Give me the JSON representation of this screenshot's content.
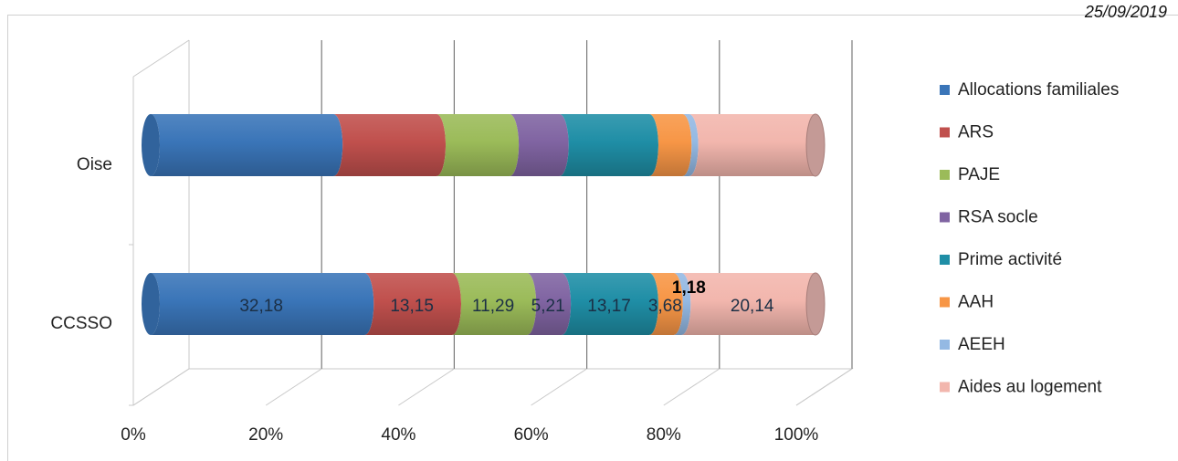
{
  "header": {
    "date": "25/09/2019"
  },
  "chart_data": {
    "type": "bar",
    "orientation": "horizontal",
    "stacked": "100%",
    "style": "3d-cylinder",
    "categories": [
      "Oise",
      "CCSSO"
    ],
    "series": [
      {
        "name": "Allocations familiales",
        "color": "#3a75b8",
        "values": [
          27.5,
          32.18
        ],
        "labels": [
          "",
          "32,18"
        ]
      },
      {
        "name": "ARS",
        "color": "#c0504d",
        "values": [
          15.5,
          13.15
        ],
        "labels": [
          "",
          "13,15"
        ]
      },
      {
        "name": "PAJE",
        "color": "#9bbb59",
        "values": [
          11.0,
          11.29
        ],
        "labels": [
          "",
          "11,29"
        ]
      },
      {
        "name": "RSA socle",
        "color": "#8064a2",
        "values": [
          7.5,
          5.21
        ],
        "labels": [
          "",
          "5,21"
        ]
      },
      {
        "name": "Prime activité",
        "color": "#1f8ea6",
        "values": [
          13.5,
          13.17
        ],
        "labels": [
          "",
          "13,17"
        ]
      },
      {
        "name": "AAH",
        "color": "#f79646",
        "values": [
          5.0,
          3.68
        ],
        "labels": [
          "",
          "3,68"
        ]
      },
      {
        "name": "AEEH",
        "color": "#94b9e3",
        "values": [
          1.0,
          1.18
        ],
        "labels": [
          "",
          "1,18"
        ]
      },
      {
        "name": "Aides au logement",
        "color": "#f2b6ad",
        "values": [
          19.0,
          20.14
        ],
        "labels": [
          "",
          "20,14"
        ]
      }
    ],
    "x_ticks": [
      "0%",
      "20%",
      "40%",
      "60%",
      "80%",
      "100%"
    ],
    "xlim": [
      0,
      100
    ],
    "grid": true,
    "legend": "right"
  }
}
